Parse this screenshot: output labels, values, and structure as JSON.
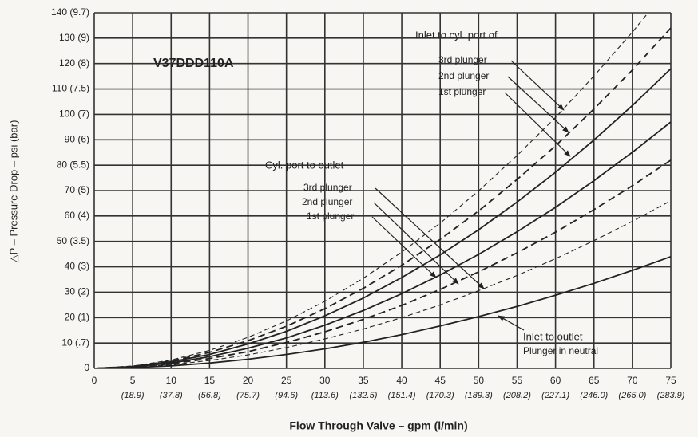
{
  "chart_data": {
    "type": "line",
    "model": "V37DDD110A",
    "xlabel": "Flow Through Valve – gpm (l/min)",
    "ylabel": "△P – Pressure Drop – psi (bar)",
    "x": [
      0,
      5,
      10,
      15,
      20,
      25,
      30,
      35,
      40,
      45,
      50,
      55,
      60,
      65,
      70,
      75
    ],
    "xlim": [
      0,
      75
    ],
    "xticks": [
      0,
      5,
      10,
      15,
      20,
      25,
      30,
      35,
      40,
      45,
      50,
      55,
      60,
      65,
      70,
      75
    ],
    "xtick_sublabels": [
      null,
      "(18.9)",
      "(37.8)",
      "(56.8)",
      "(75.7)",
      "(94.6)",
      "(113.6)",
      "(132.5)",
      "(151.4)",
      "(170.3)",
      "(189.3)",
      "(208.2)",
      "(227.1)",
      "(246.0)",
      "(265.0)",
      "(283.9)"
    ],
    "ylim": [
      0,
      140
    ],
    "yticks": [
      0,
      {
        "value": 10,
        "label": "10 (.7)"
      },
      {
        "value": 20,
        "label": "20 (1)"
      },
      {
        "value": 30,
        "label": "30 (2)"
      },
      {
        "value": 40,
        "label": "40 (3)"
      },
      {
        "value": 50,
        "label": "50 (3.5)"
      },
      {
        "value": 60,
        "label": "60 (4)"
      },
      {
        "value": 70,
        "label": "70 (5)"
      },
      {
        "value": 80,
        "label": "80 (5.5)"
      },
      {
        "value": 90,
        "label": "90 (6)"
      },
      {
        "value": 100,
        "label": "100 (7)"
      },
      {
        "value": 110,
        "label": "110 (7.5)"
      },
      {
        "value": 120,
        "label": "120 (8)"
      },
      {
        "value": 130,
        "label": "130 (9)"
      },
      {
        "value": 140,
        "label": "140 (9.7)"
      }
    ],
    "grid": true,
    "color": "#222222",
    "series": [
      {
        "style": "solid",
        "values": [
          0,
          0.3,
          1,
          2.1,
          3.6,
          5.5,
          7.7,
          10.3,
          13.3,
          16.7,
          20.4,
          24.4,
          28.8,
          33.5,
          38.6,
          44
        ]
      },
      {
        "style": "thin-dashed",
        "values": [
          0,
          0.4,
          1.4,
          3.1,
          5.3,
          8.2,
          11.6,
          15.5,
          20,
          25,
          30.6,
          36.6,
          43.2,
          50.3,
          57.9,
          66
        ]
      },
      {
        "style": "dashed",
        "values": [
          0,
          0.5,
          1.8,
          3.9,
          6.6,
          10.2,
          14.4,
          19.3,
          24.8,
          31.1,
          38,
          45.5,
          53.6,
          62.5,
          71.9,
          82
        ]
      },
      {
        "style": "solid",
        "values": [
          0,
          0.6,
          2.1,
          4.6,
          7.9,
          12,
          17,
          22.8,
          29.4,
          36.8,
          44.9,
          53.8,
          63.4,
          73.9,
          85.1,
          97
        ]
      },
      {
        "style": "solid",
        "values": [
          0,
          0.7,
          2.6,
          5.5,
          9.6,
          14.6,
          20.7,
          27.7,
          35.8,
          44.7,
          54.6,
          65.5,
          77.2,
          89.9,
          103.5,
          118
        ]
      },
      {
        "style": "dashed",
        "values": [
          0,
          0.8,
          2.9,
          6.3,
          10.9,
          16.6,
          23.5,
          31.5,
          40.6,
          50.8,
          62,
          74.4,
          87.6,
          102.1,
          117.5,
          134
        ]
      },
      {
        "style": "thin-dashed",
        "values": [
          0,
          0.9,
          3.3,
          7.1,
          12.2,
          18.7,
          26.4,
          35.5,
          45.8,
          57.2,
          69.9,
          83.8,
          98.8,
          115.1,
          132.4,
          151
        ]
      }
    ],
    "annotations": {
      "inlet_to_cyl": {
        "title": "Inlet to cyl. port of",
        "items": [
          "3rd plunger",
          "2nd plunger",
          "1st plunger"
        ]
      },
      "cyl_to_outlet": {
        "title": "Cyl. port to outlet",
        "items": [
          "3rd plunger",
          "2nd plunger",
          "1st plunger"
        ]
      },
      "inlet_to_outlet": {
        "title": "Inlet to outlet",
        "note": "Plunger in neutral"
      }
    }
  }
}
